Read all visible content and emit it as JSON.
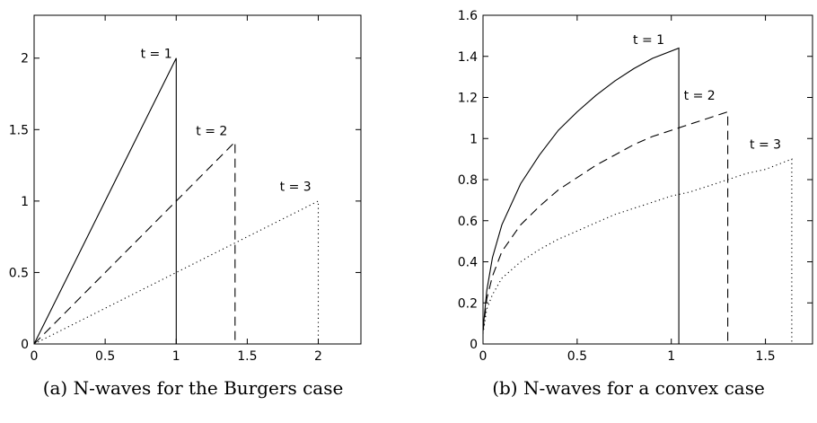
{
  "chart_data": [
    {
      "type": "line",
      "caption": "(a) N-waves for the Burgers case",
      "xlim": [
        0,
        2.3
      ],
      "ylim": [
        0,
        2.3
      ],
      "xticks": [
        "0",
        "0.5",
        "1",
        "1.5",
        "2"
      ],
      "yticks": [
        "0",
        "0.5",
        "1",
        "1.5",
        "2"
      ],
      "series": [
        {
          "label": "t = 1",
          "style": "solid",
          "x": [
            0,
            1,
            1
          ],
          "y": [
            0,
            2,
            0
          ],
          "label_at": [
            0.86,
            2.0
          ]
        },
        {
          "label": "t = 2",
          "style": "dashed",
          "x": [
            0,
            1.414,
            1.414
          ],
          "y": [
            0,
            1.414,
            0
          ],
          "label_at": [
            1.25,
            1.46
          ]
        },
        {
          "label": "t = 3",
          "style": "dotted",
          "x": [
            0,
            2.0,
            2.0
          ],
          "y": [
            0,
            1.0,
            0
          ],
          "label_at": [
            1.84,
            1.07
          ]
        }
      ]
    },
    {
      "type": "line",
      "caption": "(b) N-waves for a convex case",
      "xlim": [
        0,
        1.75
      ],
      "ylim": [
        0,
        1.6
      ],
      "xticks": [
        "0",
        "0.5",
        "1",
        "1.5"
      ],
      "yticks": [
        "0",
        "0.2",
        "0.4",
        "0.6",
        "0.8",
        "1",
        "1.2",
        "1.4",
        "1.6"
      ],
      "series": [
        {
          "label": "t = 1",
          "style": "solid",
          "x": [
            0,
            0.02,
            0.05,
            0.1,
            0.2,
            0.3,
            0.4,
            0.5,
            0.6,
            0.7,
            0.8,
            0.9,
            1.04,
            1.04
          ],
          "y": [
            0.07,
            0.26,
            0.42,
            0.58,
            0.78,
            0.92,
            1.04,
            1.13,
            1.21,
            1.28,
            1.34,
            1.39,
            1.44,
            0
          ],
          "label_at": [
            0.88,
            1.46
          ]
        },
        {
          "label": "t = 2",
          "style": "dashed",
          "x": [
            0,
            0.02,
            0.05,
            0.1,
            0.2,
            0.3,
            0.4,
            0.5,
            0.6,
            0.7,
            0.8,
            0.9,
            1.0,
            1.1,
            1.2,
            1.3,
            1.3
          ],
          "y": [
            0.06,
            0.22,
            0.33,
            0.45,
            0.58,
            0.67,
            0.75,
            0.81,
            0.87,
            0.92,
            0.97,
            1.01,
            1.04,
            1.07,
            1.1,
            1.13,
            0
          ],
          "label_at": [
            1.15,
            1.19
          ]
        },
        {
          "label": "t = 3",
          "style": "dotted",
          "x": [
            0,
            0.02,
            0.05,
            0.1,
            0.2,
            0.3,
            0.4,
            0.5,
            0.6,
            0.7,
            0.8,
            0.9,
            1.0,
            1.1,
            1.2,
            1.3,
            1.4,
            1.5,
            1.64,
            1.64
          ],
          "y": [
            0.05,
            0.17,
            0.24,
            0.32,
            0.4,
            0.46,
            0.51,
            0.55,
            0.59,
            0.63,
            0.66,
            0.69,
            0.72,
            0.74,
            0.77,
            0.8,
            0.83,
            0.85,
            0.9,
            0
          ],
          "label_at": [
            1.5,
            0.95
          ]
        }
      ]
    }
  ]
}
